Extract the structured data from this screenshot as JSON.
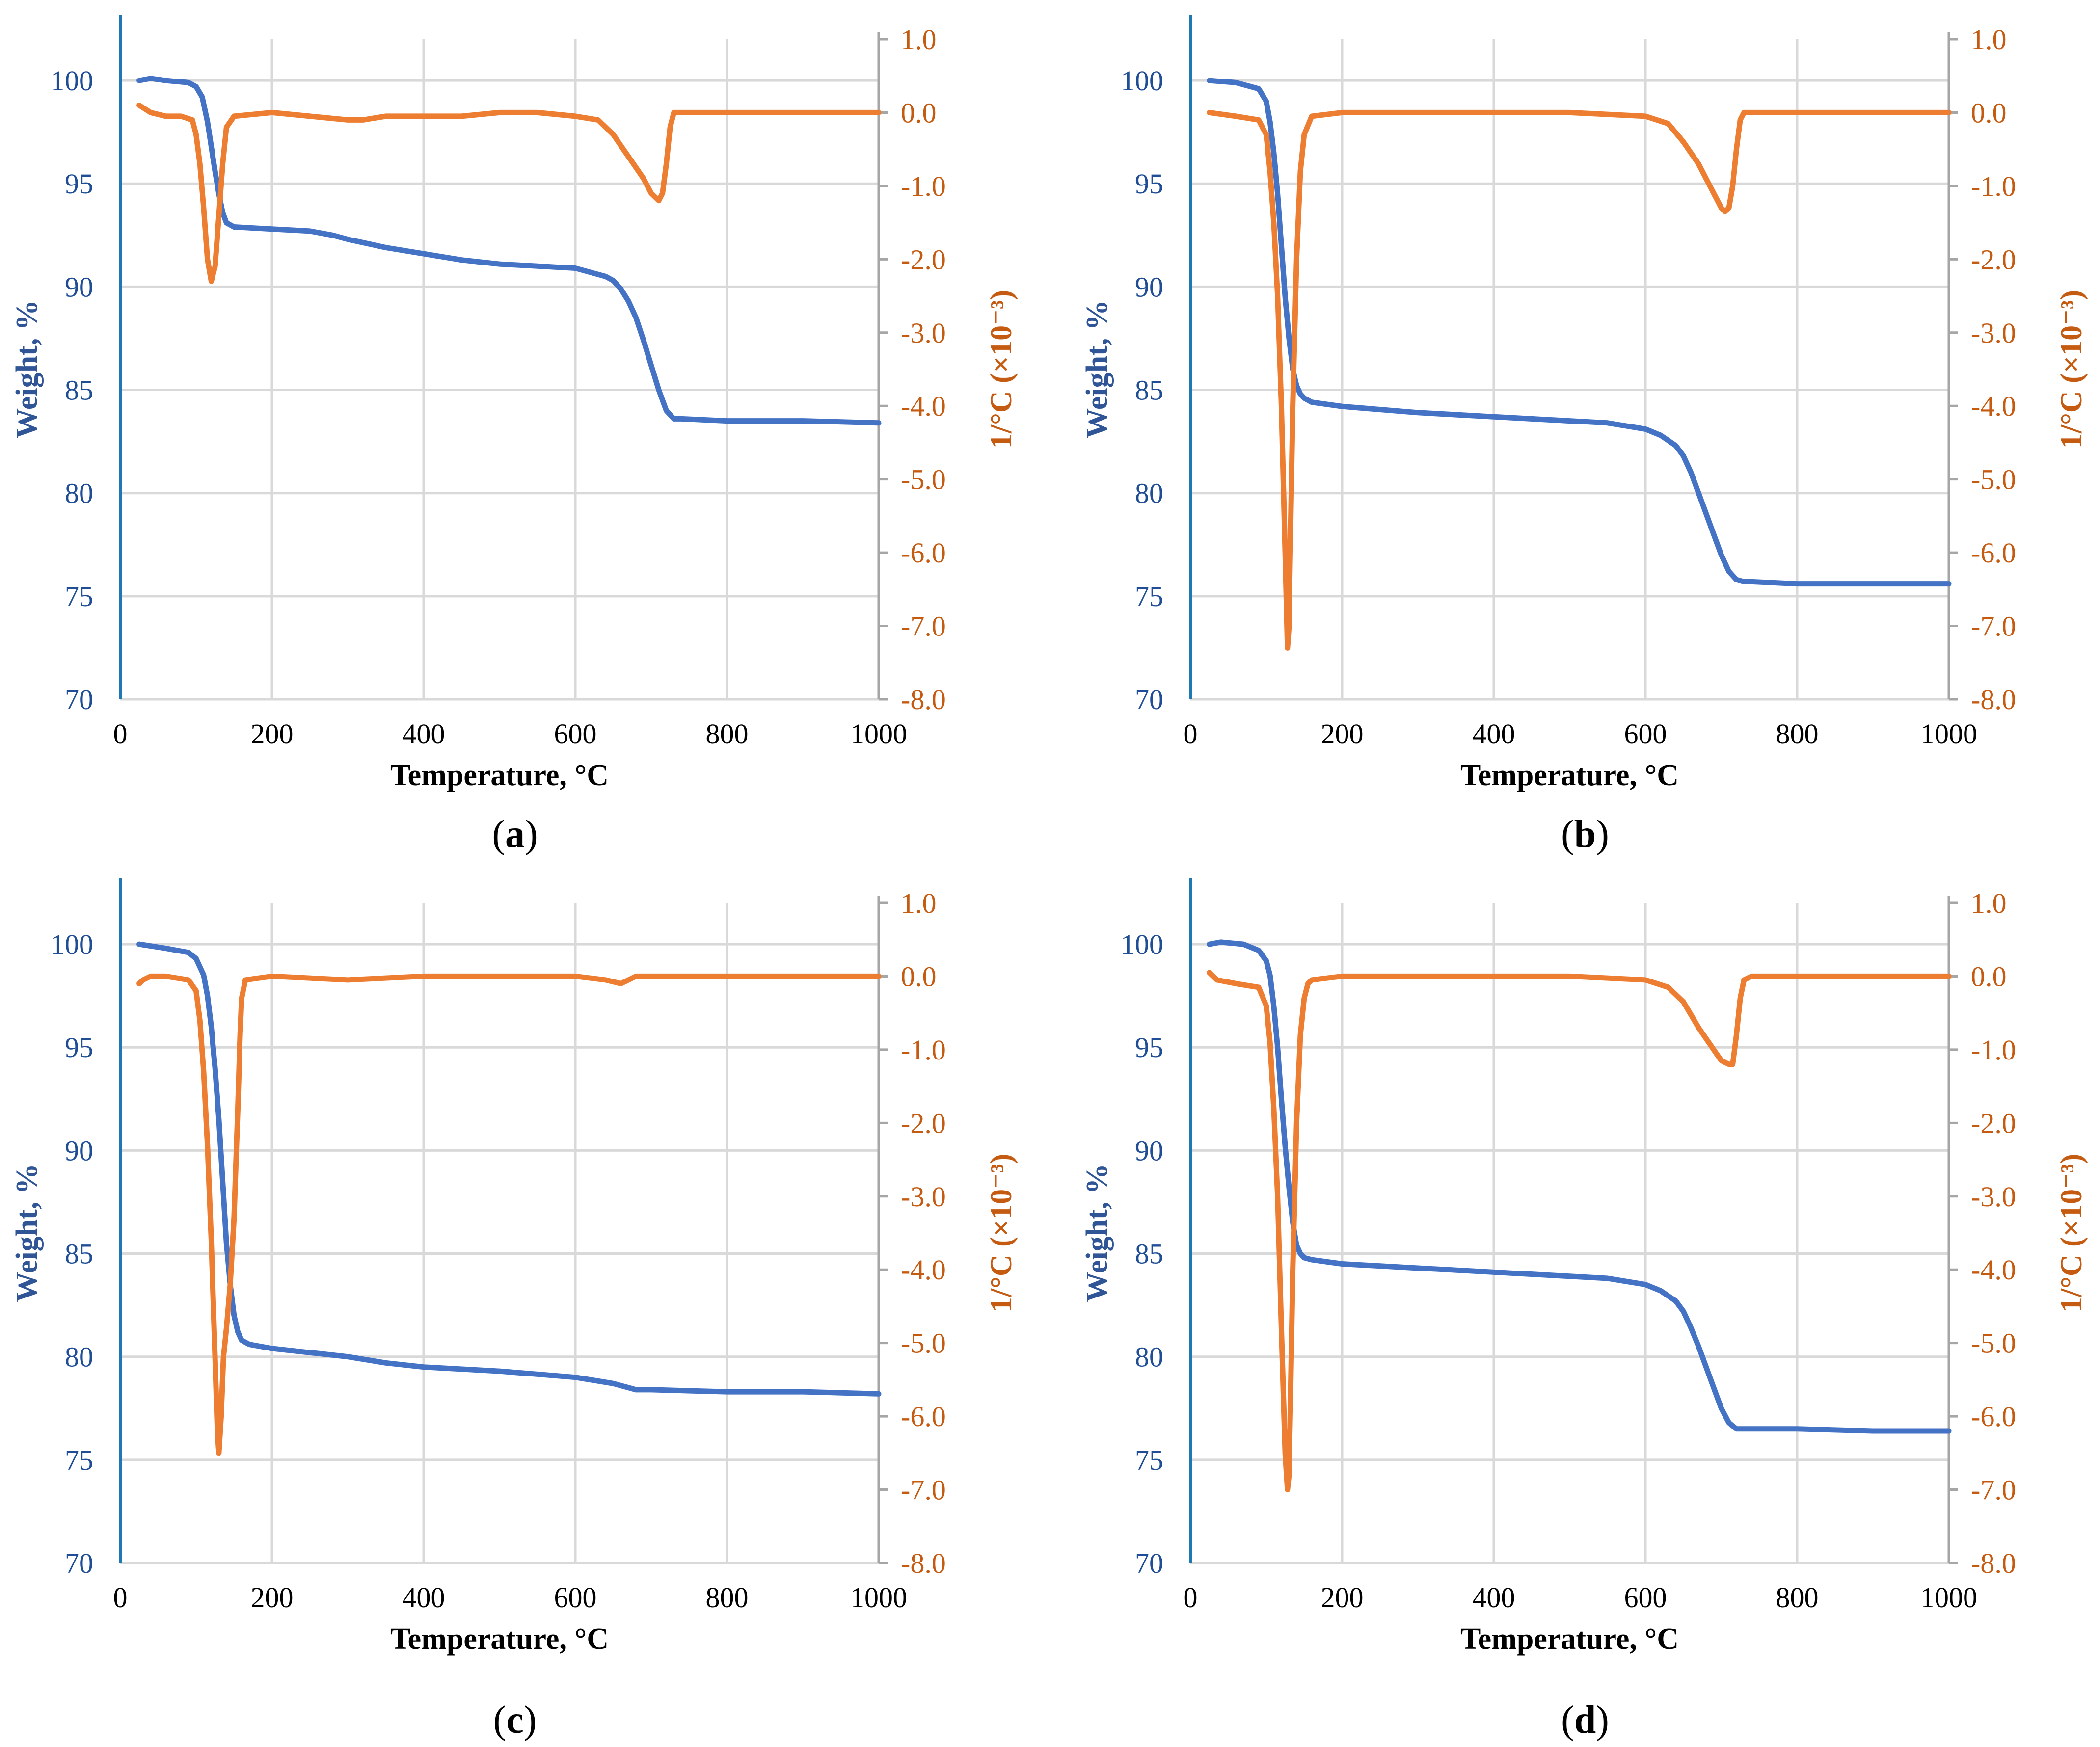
{
  "colors": {
    "weight": "#4472C4",
    "deriv": "#ED7D31",
    "grid": "#D9D9D9",
    "axis_right": "#A6A6A6",
    "axis_left": "#1F77B4"
  },
  "chart_data": [
    {
      "id": "a",
      "panel_label": "a",
      "type": "line",
      "xlabel": "Temperature, °C",
      "ylabel_left": "Weight, %",
      "ylabel_right": "1/°C (×10⁻³)",
      "xlim": [
        0,
        1000
      ],
      "ylim_left": [
        70,
        102
      ],
      "ylim_right": [
        -8,
        1
      ],
      "x_ticks": [
        "0",
        "200",
        "400",
        "600",
        "800",
        "1000"
      ],
      "y_left_ticks": [
        "70",
        "75",
        "80",
        "85",
        "90",
        "95",
        "100"
      ],
      "y_right_ticks": [
        "-8.0",
        "-7.0",
        "-6.0",
        "-5.0",
        "-4.0",
        "-3.0",
        "-2.0",
        "-1.0",
        "0.0",
        "1.0"
      ],
      "series": [
        {
          "name": "Weight",
          "axis": "left",
          "x": [
            25,
            40,
            60,
            90,
            100,
            108,
            115,
            120,
            125,
            130,
            135,
            140,
            150,
            200,
            250,
            280,
            300,
            350,
            400,
            450,
            500,
            550,
            600,
            620,
            640,
            650,
            660,
            670,
            680,
            690,
            700,
            710,
            720,
            730,
            740,
            800,
            900,
            1000
          ],
          "y": [
            100,
            100.1,
            100,
            99.9,
            99.7,
            99.2,
            98,
            96.8,
            95.6,
            94.5,
            93.6,
            93.1,
            92.9,
            92.8,
            92.7,
            92.5,
            92.3,
            91.9,
            91.6,
            91.3,
            91.1,
            91,
            90.9,
            90.7,
            90.5,
            90.3,
            89.9,
            89.3,
            88.5,
            87.4,
            86.2,
            85,
            84,
            83.6,
            83.6,
            83.5,
            83.5,
            83.4
          ]
        },
        {
          "name": "1/°C",
          "axis": "right",
          "x": [
            25,
            40,
            60,
            80,
            95,
            100,
            105,
            110,
            115,
            120,
            125,
            130,
            135,
            140,
            150,
            200,
            250,
            300,
            320,
            350,
            400,
            450,
            500,
            550,
            600,
            630,
            650,
            670,
            690,
            700,
            710,
            715,
            720,
            725,
            730,
            740,
            800,
            900,
            1000
          ],
          "y": [
            0.1,
            0,
            -0.05,
            -0.05,
            -0.1,
            -0.3,
            -0.7,
            -1.3,
            -2,
            -2.3,
            -2.1,
            -1.4,
            -0.7,
            -0.2,
            -0.05,
            0,
            -0.05,
            -0.1,
            -0.1,
            -0.05,
            -0.05,
            -0.05,
            0,
            0,
            -0.05,
            -0.1,
            -0.3,
            -0.6,
            -0.9,
            -1.1,
            -1.2,
            -1.1,
            -0.7,
            -0.2,
            0,
            0,
            0,
            0,
            0
          ]
        }
      ]
    },
    {
      "id": "b",
      "panel_label": "b",
      "type": "line",
      "xlabel": "Temperature, °C",
      "ylabel_left": "Weight, %",
      "ylabel_right": "1/°C (×10⁻³)",
      "xlim": [
        0,
        1000
      ],
      "ylim_left": [
        70,
        102
      ],
      "ylim_right": [
        -8,
        1
      ],
      "x_ticks": [
        "0",
        "200",
        "400",
        "600",
        "800",
        "1000"
      ],
      "y_left_ticks": [
        "70",
        "75",
        "80",
        "85",
        "90",
        "95",
        "100"
      ],
      "y_right_ticks": [
        "-8.0",
        "-7.0",
        "-6.0",
        "-5.0",
        "-4.0",
        "-3.0",
        "-2.0",
        "-1.0",
        "0.0",
        "1.0"
      ],
      "series": [
        {
          "name": "Weight",
          "axis": "left",
          "x": [
            25,
            60,
            90,
            100,
            105,
            110,
            115,
            120,
            125,
            130,
            135,
            140,
            145,
            150,
            160,
            200,
            300,
            400,
            500,
            550,
            600,
            620,
            640,
            650,
            660,
            670,
            680,
            690,
            700,
            710,
            720,
            730,
            740,
            800,
            900,
            1000
          ],
          "y": [
            100,
            99.9,
            99.6,
            99,
            98,
            96.5,
            94.5,
            92,
            89.5,
            87.5,
            86,
            85.2,
            84.8,
            84.6,
            84.4,
            84.2,
            83.9,
            83.7,
            83.5,
            83.4,
            83.1,
            82.8,
            82.3,
            81.8,
            81,
            80,
            79,
            78,
            77,
            76.2,
            75.8,
            75.7,
            75.7,
            75.6,
            75.6,
            75.6
          ]
        },
        {
          "name": "1/°C",
          "axis": "right",
          "x": [
            25,
            60,
            90,
            100,
            105,
            110,
            115,
            120,
            125,
            128,
            130,
            132,
            135,
            140,
            145,
            150,
            160,
            200,
            300,
            400,
            500,
            600,
            630,
            650,
            670,
            690,
            700,
            705,
            710,
            715,
            720,
            725,
            730,
            740,
            800,
            900,
            1000
          ],
          "y": [
            0,
            -0.05,
            -0.1,
            -0.3,
            -0.8,
            -1.5,
            -2.5,
            -4,
            -6,
            -7.3,
            -7,
            -5.8,
            -4,
            -2,
            -0.8,
            -0.3,
            -0.05,
            0,
            0,
            0,
            0,
            -0.05,
            -0.15,
            -0.4,
            -0.7,
            -1.1,
            -1.3,
            -1.35,
            -1.3,
            -1,
            -0.5,
            -0.1,
            0,
            0,
            0,
            0,
            0
          ]
        }
      ]
    },
    {
      "id": "c",
      "panel_label": "c",
      "type": "line",
      "xlabel": "Temperature, °C",
      "ylabel_left": "Weight, %",
      "ylabel_right": "1/°C (×10⁻³)",
      "xlim": [
        0,
        1000
      ],
      "ylim_left": [
        70,
        102
      ],
      "ylim_right": [
        -8,
        1
      ],
      "x_ticks": [
        "0",
        "200",
        "400",
        "600",
        "800",
        "1000"
      ],
      "y_left_ticks": [
        "70",
        "75",
        "80",
        "85",
        "90",
        "95",
        "100"
      ],
      "y_right_ticks": [
        "-8.0",
        "-7.0",
        "-6.0",
        "-5.0",
        "-4.0",
        "-3.0",
        "-2.0",
        "-1.0",
        "0.0",
        "1.0"
      ],
      "series": [
        {
          "name": "Weight",
          "axis": "left",
          "x": [
            25,
            60,
            90,
            100,
            110,
            115,
            120,
            125,
            130,
            135,
            140,
            145,
            150,
            155,
            160,
            170,
            200,
            250,
            300,
            350,
            400,
            500,
            600,
            650,
            670,
            680,
            700,
            800,
            900,
            1000
          ],
          "y": [
            100,
            99.8,
            99.6,
            99.3,
            98.5,
            97.5,
            96,
            94,
            91.5,
            88.5,
            85.5,
            83.5,
            82,
            81.2,
            80.8,
            80.6,
            80.4,
            80.2,
            80,
            79.7,
            79.5,
            79.3,
            79,
            78.7,
            78.5,
            78.4,
            78.4,
            78.3,
            78.3,
            78.2
          ]
        },
        {
          "name": "1/°C",
          "axis": "right",
          "x": [
            25,
            30,
            40,
            60,
            90,
            100,
            105,
            110,
            115,
            120,
            125,
            128,
            130,
            133,
            136,
            140,
            145,
            150,
            155,
            158,
            160,
            165,
            200,
            300,
            400,
            500,
            600,
            640,
            660,
            680,
            700,
            800,
            900,
            1000
          ],
          "y": [
            -0.1,
            -0.05,
            0,
            0,
            -0.05,
            -0.2,
            -0.6,
            -1.3,
            -2.3,
            -3.6,
            -5.2,
            -6.2,
            -6.5,
            -6,
            -5.2,
            -4.8,
            -4.2,
            -3.3,
            -1.8,
            -0.8,
            -0.3,
            -0.05,
            0,
            -0.05,
            0,
            0,
            0,
            -0.05,
            -0.1,
            0,
            0,
            0,
            0,
            0
          ]
        }
      ]
    },
    {
      "id": "d",
      "panel_label": "d",
      "type": "line",
      "xlabel": "Temperature, °C",
      "ylabel_left": "Weight, %",
      "ylabel_right": "1/°C (×10⁻³)",
      "xlim": [
        0,
        1000
      ],
      "ylim_left": [
        70,
        102
      ],
      "ylim_right": [
        -8,
        1
      ],
      "x_ticks": [
        "0",
        "200",
        "400",
        "600",
        "800",
        "1000"
      ],
      "y_left_ticks": [
        "70",
        "75",
        "80",
        "85",
        "90",
        "95",
        "100"
      ],
      "y_right_ticks": [
        "-8.0",
        "-7.0",
        "-6.0",
        "-5.0",
        "-4.0",
        "-3.0",
        "-2.0",
        "-1.0",
        "0.0",
        "1.0"
      ],
      "series": [
        {
          "name": "Weight",
          "axis": "left",
          "x": [
            25,
            40,
            70,
            90,
            100,
            105,
            110,
            115,
            120,
            125,
            130,
            135,
            140,
            145,
            150,
            160,
            200,
            300,
            400,
            500,
            550,
            600,
            620,
            640,
            650,
            660,
            670,
            680,
            690,
            700,
            710,
            720,
            730,
            740,
            800,
            900,
            1000
          ],
          "y": [
            100,
            100.1,
            100,
            99.7,
            99.2,
            98.5,
            97,
            95,
            92.5,
            90.2,
            88.2,
            86.5,
            85.4,
            85,
            84.8,
            84.7,
            84.5,
            84.3,
            84.1,
            83.9,
            83.8,
            83.5,
            83.2,
            82.7,
            82.2,
            81.4,
            80.5,
            79.5,
            78.5,
            77.5,
            76.8,
            76.5,
            76.5,
            76.5,
            76.5,
            76.4,
            76.4
          ]
        },
        {
          "name": "1/°C",
          "axis": "right",
          "x": [
            25,
            35,
            60,
            90,
            100,
            105,
            110,
            115,
            120,
            125,
            128,
            130,
            132,
            135,
            140,
            145,
            150,
            155,
            160,
            200,
            300,
            400,
            500,
            600,
            630,
            650,
            670,
            690,
            700,
            710,
            715,
            720,
            725,
            730,
            740,
            800,
            900,
            1000
          ],
          "y": [
            0.05,
            -0.05,
            -0.1,
            -0.15,
            -0.4,
            -0.9,
            -1.8,
            -3,
            -4.8,
            -6.5,
            -7,
            -6.8,
            -5.8,
            -4,
            -2,
            -0.8,
            -0.3,
            -0.1,
            -0.05,
            0,
            0,
            0,
            0,
            -0.05,
            -0.15,
            -0.35,
            -0.7,
            -1,
            -1.15,
            -1.2,
            -1.2,
            -0.8,
            -0.3,
            -0.05,
            0,
            0,
            0,
            0
          ]
        }
      ]
    }
  ]
}
